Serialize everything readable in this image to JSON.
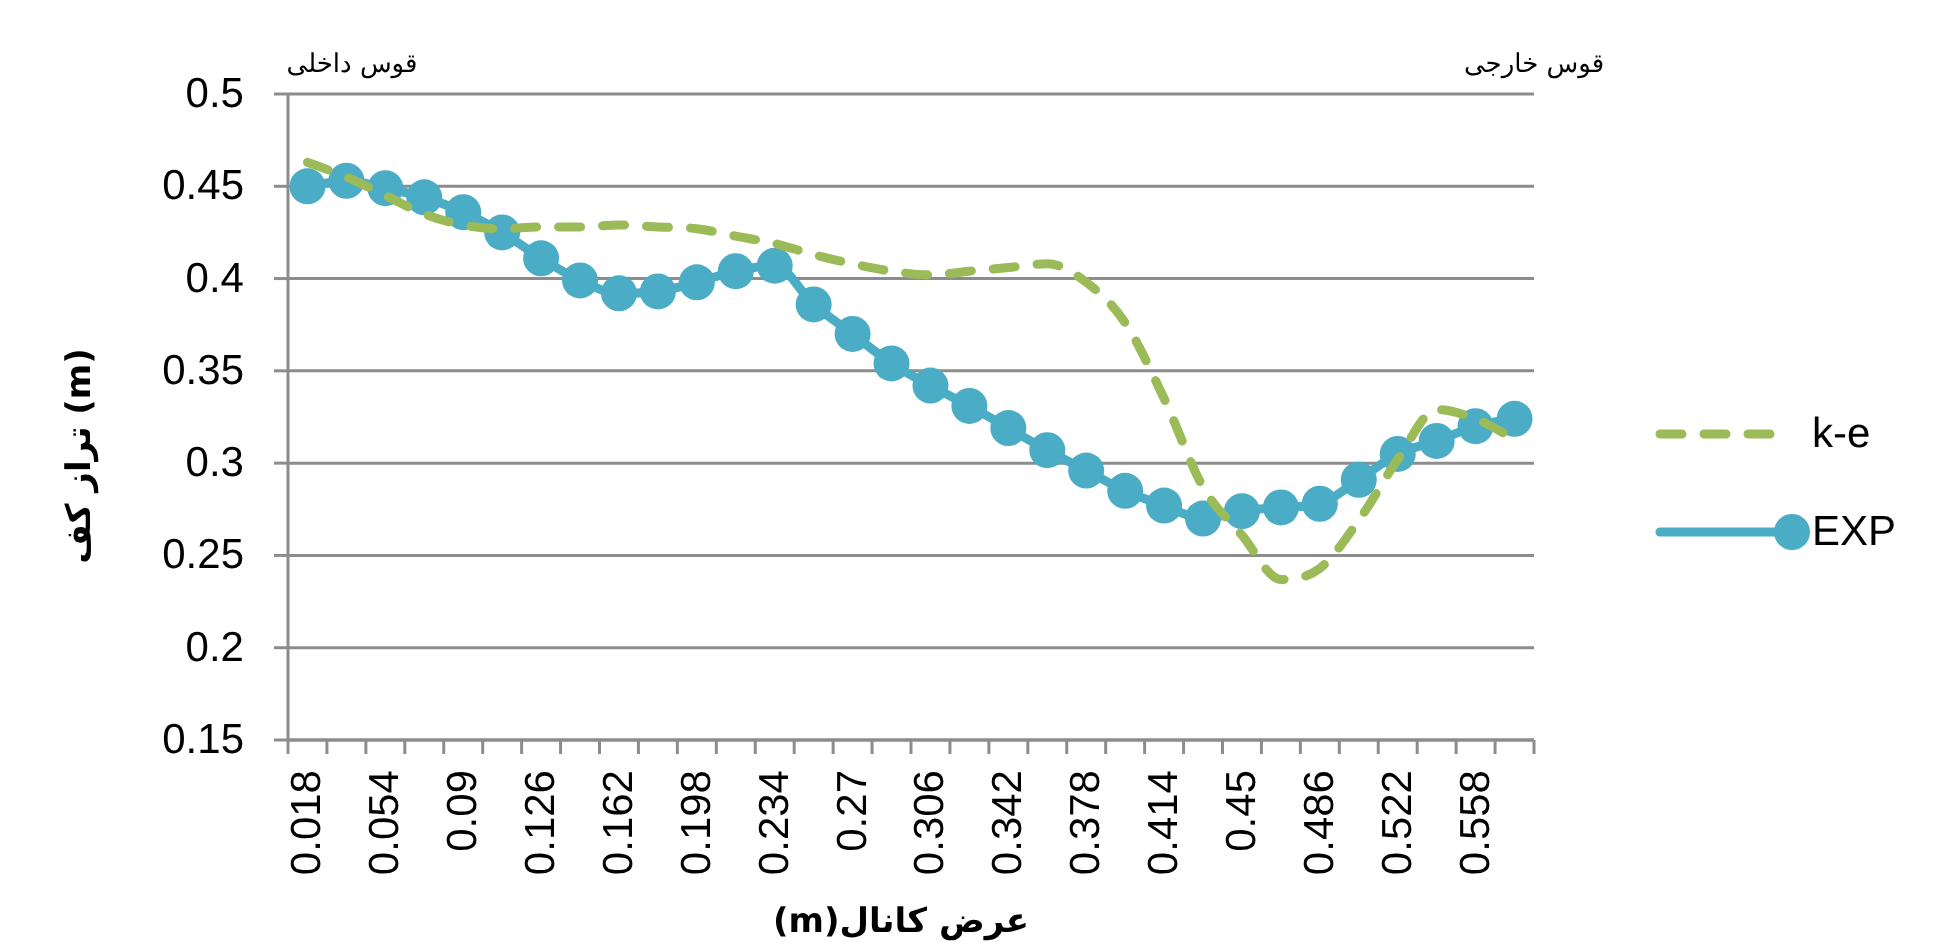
{
  "chart_data": {
    "type": "line",
    "xlabel": "عرض کانال(m)",
    "ylabel": "تراز کف (m)",
    "annotations": [
      "قوس داخلی",
      "قوس خارجی"
    ],
    "categories": [
      "0.018",
      null,
      "0.054",
      null,
      "0.09",
      null,
      "0.126",
      null,
      "0.162",
      null,
      "0.198",
      null,
      "0.234",
      null,
      "0.27",
      null,
      "0.306",
      null,
      "0.342",
      null,
      "0.378",
      null,
      "0.414",
      null,
      "0.45",
      null,
      "0.486",
      null,
      "0.522",
      null,
      "0.558",
      null
    ],
    "series": [
      {
        "name": "k-e",
        "color": "#9bbb59",
        "line_style": "dashed",
        "marker": "none",
        "values": [
          0.463,
          0.455,
          0.445,
          0.435,
          0.429,
          0.427,
          0.428,
          0.428,
          0.429,
          0.428,
          0.427,
          0.423,
          0.419,
          0.413,
          0.408,
          0.404,
          0.402,
          0.404,
          0.406,
          0.408,
          0.398,
          0.376,
          0.335,
          0.287,
          0.261,
          0.237,
          0.243,
          0.269,
          0.302,
          0.329,
          0.324,
          0.313
        ]
      },
      {
        "name": "EXP",
        "color": "#4bacc6",
        "line_style": "solid",
        "marker": "circle",
        "values": [
          0.45,
          0.453,
          0.449,
          0.444,
          0.436,
          0.425,
          0.411,
          0.399,
          0.392,
          0.393,
          0.398,
          0.404,
          0.407,
          0.386,
          0.37,
          0.354,
          0.342,
          0.331,
          0.319,
          0.307,
          0.296,
          0.285,
          0.277,
          0.27,
          0.274,
          0.276,
          0.278,
          0.291,
          0.305,
          0.312,
          0.32,
          0.324
        ]
      }
    ],
    "ylim": [
      0.15,
      0.5
    ],
    "yticks": [
      0.15,
      0.2,
      0.25,
      0.3,
      0.35,
      0.4,
      0.45,
      0.5
    ],
    "grid": "y",
    "legend": "right"
  }
}
